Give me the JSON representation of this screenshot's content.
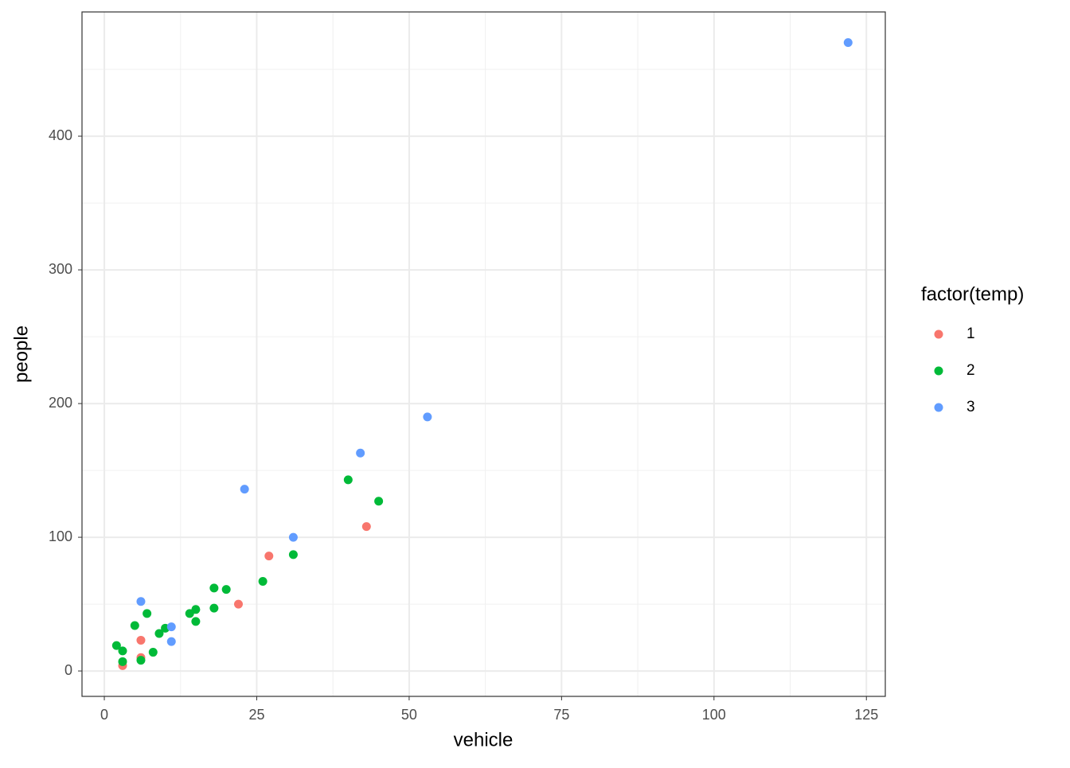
{
  "chart_data": {
    "type": "scatter",
    "x_label": "vehicle",
    "y_label": "people",
    "legend_title": "factor(temp)",
    "legend_position": "right",
    "xlim": [
      -3.66,
      128.1
    ],
    "ylim": [
      -19,
      492.9
    ],
    "xticks": [
      0,
      25,
      50,
      75,
      100,
      125
    ],
    "yticks": [
      0,
      100,
      200,
      300,
      400
    ],
    "x_minor": [
      12.5,
      37.5,
      62.5,
      87.5,
      112.5
    ],
    "y_minor": [
      50,
      150,
      250,
      350,
      450
    ],
    "grid": true,
    "series": [
      {
        "name": "1",
        "color": "#F8766D",
        "x": [
          3,
          6,
          6,
          22,
          27,
          43
        ],
        "values": [
          4,
          10,
          23,
          50,
          86,
          108
        ]
      },
      {
        "name": "2",
        "color": "#00BA38",
        "x": [
          2,
          3,
          3,
          6,
          5,
          7,
          8,
          9,
          10,
          14,
          15,
          15,
          18,
          18,
          20,
          26,
          31,
          40,
          45
        ],
        "values": [
          19,
          15,
          7,
          8,
          34,
          43,
          14,
          28,
          32,
          43,
          46,
          37,
          62,
          47,
          61,
          67,
          87,
          143,
          127
        ]
      },
      {
        "name": "3",
        "color": "#619CFF",
        "x": [
          6,
          11,
          11,
          23,
          31,
          42,
          53,
          122
        ],
        "values": [
          52,
          33,
          22,
          136,
          100,
          163,
          190,
          470
        ]
      }
    ]
  }
}
